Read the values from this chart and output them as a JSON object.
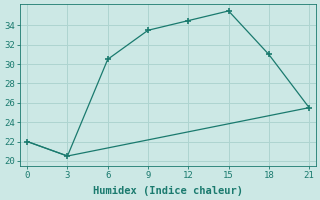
{
  "line1_x": [
    0,
    3,
    6,
    9,
    12,
    15,
    18,
    21
  ],
  "line1_y": [
    22,
    20.5,
    30.5,
    33.5,
    34.5,
    35.5,
    31,
    25.5
  ],
  "line2_x": [
    0,
    3,
    21
  ],
  "line2_y": [
    22,
    20.5,
    25.5
  ],
  "color": "#1a7a6e",
  "bg_color": "#cce8e5",
  "grid_color": "#aed4d0",
  "xlabel": "Humidex (Indice chaleur)",
  "xlim": [
    -0.5,
    21.5
  ],
  "ylim": [
    19.5,
    36.2
  ],
  "xticks": [
    0,
    3,
    6,
    9,
    12,
    15,
    18,
    21
  ],
  "yticks": [
    20,
    22,
    24,
    26,
    28,
    30,
    32,
    34
  ],
  "xlabel_fontsize": 7.5,
  "tick_fontsize": 6.5
}
